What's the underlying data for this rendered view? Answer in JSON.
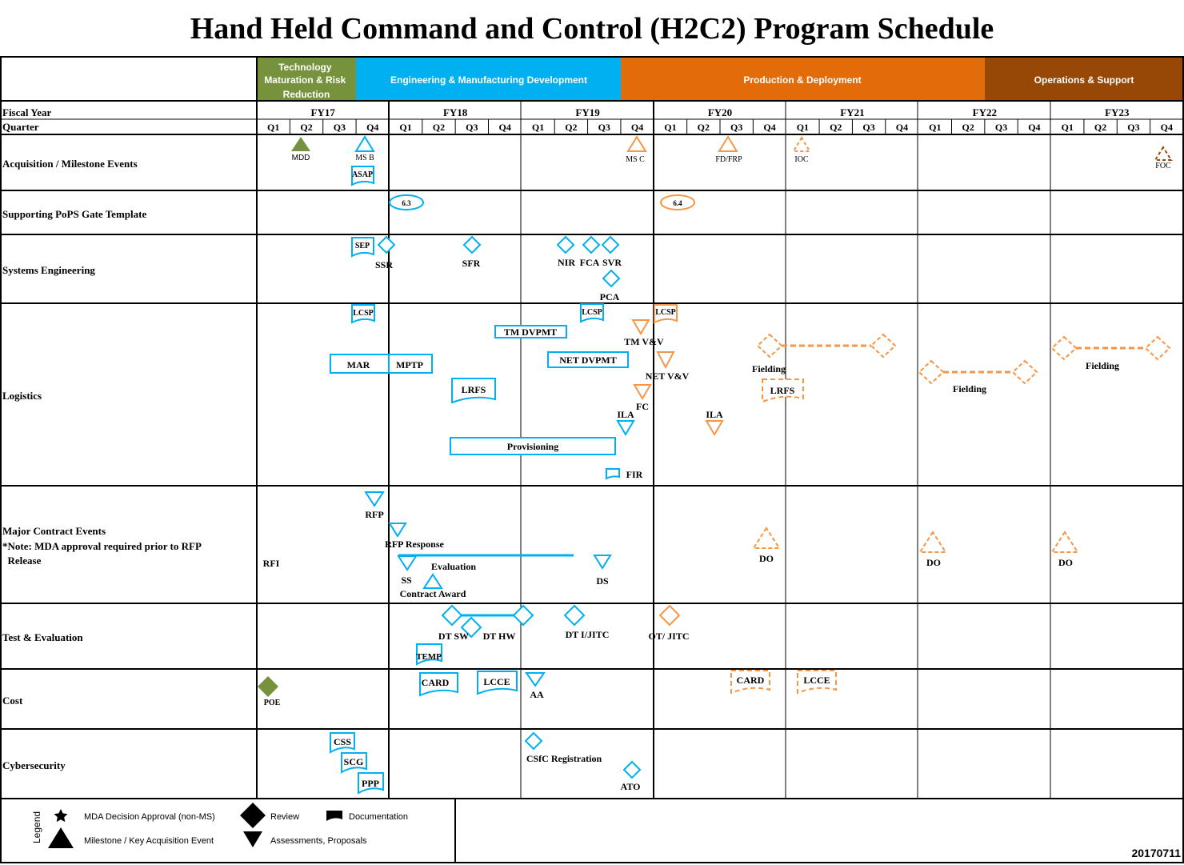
{
  "title": "Hand Held Command and Control (H2C2) Program Schedule",
  "phases": [
    {
      "label": "Technology Maturation & Risk Reduction",
      "color": "#76923c"
    },
    {
      "label": "Engineering & Manufacturing Development",
      "color": "#00b0f0"
    },
    {
      "label": "Production & Deployment",
      "color": "#e36c0a"
    },
    {
      "label": "Operations & Support",
      "color": "#984806"
    }
  ],
  "header": {
    "fiscal_year_label": "Fiscal Year",
    "quarter_label": "Quarter",
    "fiscal_years": [
      "FY17",
      "FY18",
      "FY19",
      "FY20",
      "FY21",
      "FY22",
      "FY23"
    ],
    "quarters": [
      "Q1",
      "Q2",
      "Q3",
      "Q4"
    ]
  },
  "rows": [
    {
      "label": "Acquisition / Milestone Events"
    },
    {
      "label": "Supporting PoPS Gate Template"
    },
    {
      "label": "Systems Engineering"
    },
    {
      "label": "Logistics"
    },
    {
      "label": "Major Contract Events",
      "note_lines": [
        "*Note: MDA approval required prior to RFP",
        "  Release"
      ]
    },
    {
      "label": "Test & Evaluation"
    },
    {
      "label": "Cost"
    },
    {
      "label": "Cybersecurity"
    }
  ],
  "colors": {
    "blue": "#00b0f0",
    "orange": "#f79646",
    "green": "#76923c",
    "brown": "#984806"
  },
  "events": {
    "acquisition": [
      "MDD",
      "MS B",
      "ASAP",
      "MS C",
      "FD/FRP",
      "IOC",
      "FOC"
    ],
    "pops": [
      "6.3",
      "6.4"
    ],
    "systems_engineering": [
      "SEP",
      "SSR",
      "SFR",
      "NIR",
      "FCA",
      "SVR",
      "PCA"
    ],
    "logistics": [
      "LCSP",
      "LCSP",
      "LCSP",
      "TM DVPMT",
      "TM V&V",
      "MAR",
      "MPTP",
      "NET DVPMT",
      "NET V&V",
      "Fielding",
      "LRFS",
      "LRFS",
      "FC",
      "Fielding",
      "Fielding",
      "ILA",
      "ILA",
      "Provisioning",
      "FIR"
    ],
    "contract": [
      "RFP",
      "RFP Response",
      "RFI",
      "Evaluation",
      "SS",
      "DS",
      "Contract Award",
      "DO",
      "DO",
      "DO"
    ],
    "test": [
      "DT SW",
      "DT HW",
      "DT I/JITC",
      "OT/ JITC",
      "TEMP"
    ],
    "cost": [
      "POE",
      "CARD",
      "LCCE",
      "AA",
      "CARD",
      "LCCE"
    ],
    "cyber": [
      "CSS",
      "SCG",
      "PPP",
      "CSfC Registration",
      "ATO"
    ]
  },
  "legend": {
    "title": "Legend",
    "items": [
      "MDA Decision Approval (non-MS)",
      "Review",
      "Documentation",
      "Milestone / Key Acquisition Event",
      "Assessments, Proposals"
    ]
  },
  "date_code": "20170711"
}
